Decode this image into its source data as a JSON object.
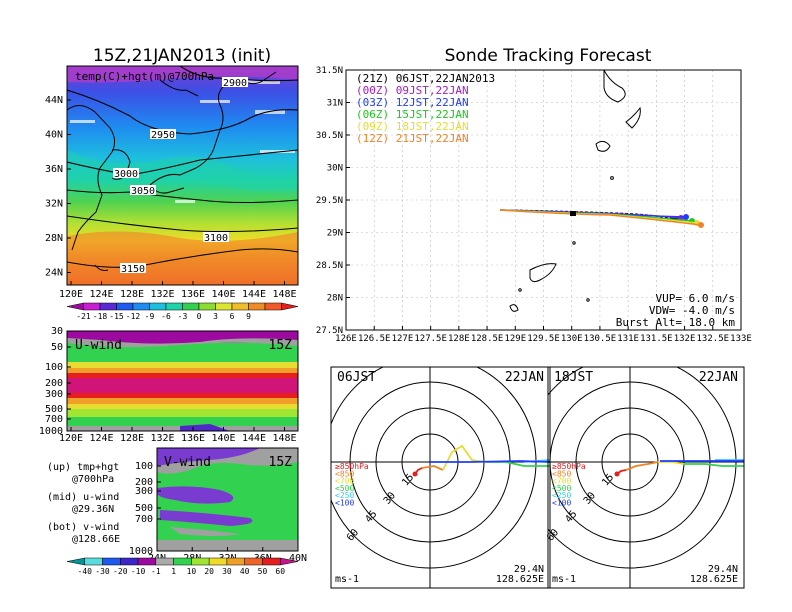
{
  "left_top": {
    "title": "15Z,21JAN2013 (init)",
    "label": "temp(C)+hgt(m)@700hPa",
    "contours": [
      "2900",
      "2950",
      "3000",
      "3050",
      "3100",
      "3150"
    ],
    "y_ticks": [
      "44N",
      "40N",
      "36N",
      "32N",
      "28N",
      "24N"
    ],
    "x_ticks": [
      "120E",
      "124E",
      "128E",
      "132E",
      "136E",
      "140E",
      "144E",
      "148E"
    ],
    "colorbar_labels": [
      "-21",
      "-18",
      "-15",
      "-12",
      "-9",
      "-6",
      "-3",
      "0",
      "3",
      "6",
      "9"
    ],
    "colorbar_colors": [
      "#9c0aa0",
      "#c81ed2",
      "#5a28d7",
      "#1e5af0",
      "#1e8cf0",
      "#1ebede",
      "#1ed2aa",
      "#32d250",
      "#8cdc32",
      "#dce632",
      "#f0be28",
      "#f08c28",
      "#f05a28",
      "#e61e1e"
    ]
  },
  "left_mid": {
    "title": "U-wind",
    "time": "15Z",
    "y_ticks": [
      "30",
      "50",
      "100",
      "200",
      "300",
      "500",
      "700",
      "1000"
    ],
    "x_ticks": [
      "120E",
      "124E",
      "128E",
      "132E",
      "136E",
      "140E",
      "144E",
      "148E"
    ]
  },
  "left_bot": {
    "title": "V-wind",
    "time": "15Z",
    "y_ticks": [
      "100",
      "200",
      "300",
      "500",
      "700",
      "1000"
    ],
    "x_ticks": [
      "24N",
      "28N",
      "32N",
      "36N",
      "40N"
    ],
    "colorbar_labels": [
      "-40",
      "-30",
      "-20",
      "-10",
      "-1",
      "1",
      "10",
      "20",
      "30",
      "40",
      "50",
      "60"
    ],
    "colorbar_colors": [
      "#009696",
      "#5adcdc",
      "#1e5af0",
      "#3c28c8",
      "#9c0aa0",
      "#aaaaaa",
      "#32d250",
      "#a0e632",
      "#f0dc28",
      "#f0a028",
      "#f06428",
      "#e61e1e",
      "#c8148c"
    ]
  },
  "legend_notes": [
    "(up) tmp+hgt",
    "@700hPa",
    "(mid) u-wind",
    "@29.36N",
    "(bot) v-wind",
    "@128.66E"
  ],
  "main": {
    "title": "Sonde Tracking Forecast",
    "y_ticks": [
      "31.5N",
      "31N",
      "30.5N",
      "30N",
      "29.5N",
      "29N",
      "28.5N",
      "28N",
      "27.5N"
    ],
    "x_ticks": [
      "126E",
      "126.5E",
      "127E",
      "127.5E",
      "128E",
      "128.5E",
      "129E",
      "129.5E",
      "130E",
      "130.5E",
      "131E",
      "131.5E",
      "132E",
      "132.5E",
      "133E"
    ],
    "legend": [
      {
        "text": "(21Z) 06JST,22JAN2013",
        "color": "#000000"
      },
      {
        "text": "(00Z) 09JST,22JAN",
        "color": "#a01ec8"
      },
      {
        "text": "(03Z) 12JST,22JAN",
        "color": "#1e3cff"
      },
      {
        "text": "(06Z) 15JST,22JAN",
        "color": "#1ec81e"
      },
      {
        "text": "(09Z) 18JST,22JAN",
        "color": "#e6dc32"
      },
      {
        "text": "(12Z) 21JST,22JAN",
        "color": "#f08228"
      }
    ],
    "params": [
      "VUP= 6.0 m/s",
      "VDW= -4.0 m/s",
      "Burst Alt= 18.0 km"
    ]
  },
  "polar_left": {
    "time": "06JST",
    "date": "22JAN",
    "rings": [
      "15",
      "30",
      "45",
      "60"
    ],
    "levels": [
      {
        "text": "≥850hPa",
        "color": "#e61e1e"
      },
      {
        "text": "<850",
        "color": "#f08228"
      },
      {
        "text": "<700",
        "color": "#e6dc32"
      },
      {
        "text": "<500",
        "color": "#32d250"
      },
      {
        "text": "<250",
        "color": "#3cc8f0"
      },
      {
        "text": "<100",
        "color": "#1e3cff"
      }
    ],
    "unit": "ms-1",
    "lat": "29.4N",
    "lon": "128.625E"
  },
  "polar_right": {
    "time": "18JST",
    "date": "22JAN",
    "rings": [
      "15",
      "30",
      "45",
      "60"
    ],
    "levels": [
      {
        "text": "≥850hPa",
        "color": "#e61e1e"
      },
      {
        "text": "<850",
        "color": "#f08228"
      },
      {
        "text": "<700",
        "color": "#e6dc32"
      },
      {
        "text": "<500",
        "color": "#32d250"
      },
      {
        "text": "<250",
        "color": "#3cc8f0"
      },
      {
        "text": "<100",
        "color": "#1e3cff"
      }
    ],
    "unit": "ms-1",
    "lat": "29.4N",
    "lon": "128.625E"
  }
}
